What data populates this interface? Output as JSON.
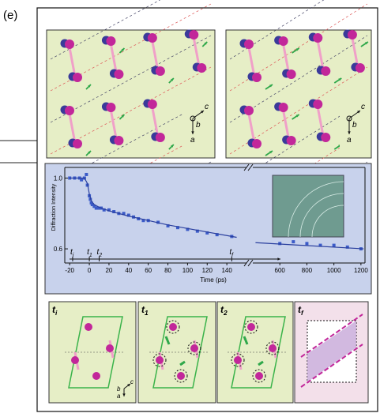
{
  "panel_label": "(e)",
  "top_panels": [
    {
      "axis_labels": [
        "c",
        "b",
        "a"
      ]
    },
    {
      "axis_labels": [
        "c",
        "b",
        "a"
      ]
    }
  ],
  "chart_data": {
    "type": "scatter",
    "y_label": "Diffraction Intensity",
    "x_label": "Time (ps)",
    "ylim": [
      0.52,
      1.06
    ],
    "yticks": [
      {
        "value": 1.0,
        "label": "1.0"
      },
      {
        "value": 0.6,
        "label": "0.6"
      }
    ],
    "xaxes": [
      {
        "xlim": [
          -25,
          160
        ],
        "xticks": [
          -20,
          0,
          20,
          40,
          60,
          80,
          100,
          120,
          140
        ]
      },
      {
        "xlim": [
          400,
          1230
        ],
        "xticks": [
          600,
          800,
          1000,
          1200
        ]
      }
    ],
    "series": [
      {
        "segment": 0,
        "style": "points",
        "color": "#3b5bc8",
        "x": [
          -20,
          -15,
          -10,
          -8,
          -5,
          -3,
          -2,
          0,
          1,
          2,
          3,
          5,
          7,
          10,
          12,
          15,
          20,
          25,
          30,
          35,
          40,
          45,
          50,
          55,
          60,
          70,
          80,
          90,
          100,
          110,
          120,
          130,
          145
        ],
        "values": [
          1.0,
          1.0,
          1.0,
          0.99,
          1.0,
          1.02,
          0.96,
          0.9,
          0.88,
          0.86,
          0.85,
          0.84,
          0.83,
          0.83,
          0.83,
          0.82,
          0.82,
          0.81,
          0.8,
          0.8,
          0.79,
          0.78,
          0.77,
          0.76,
          0.76,
          0.75,
          0.73,
          0.72,
          0.71,
          0.7,
          0.69,
          0.68,
          0.67
        ]
      },
      {
        "segment": 1,
        "style": "points",
        "color": "#3b5bc8",
        "x": [
          600,
          700,
          800,
          900,
          1000,
          1100,
          1200
        ],
        "values": [
          0.63,
          0.64,
          0.63,
          0.62,
          0.62,
          0.61,
          0.6
        ]
      },
      {
        "segment": 0,
        "style": "line",
        "color": "#2a3f9e",
        "x": [
          -20,
          -5,
          -2,
          0,
          2,
          5,
          10,
          20,
          40,
          60,
          80,
          100,
          120,
          140,
          150
        ],
        "values": [
          1.0,
          1.0,
          0.97,
          0.91,
          0.87,
          0.85,
          0.835,
          0.815,
          0.785,
          0.76,
          0.735,
          0.715,
          0.695,
          0.675,
          0.665
        ]
      },
      {
        "segment": 1,
        "style": "line",
        "color": "#2a3f9e",
        "x": [
          420,
          1220
        ],
        "values": [
          0.635,
          0.6
        ]
      }
    ],
    "markers": [
      {
        "value": -17,
        "label": "t",
        "sub": "i"
      },
      {
        "value": 0,
        "label": "t",
        "sub": "1"
      },
      {
        "value": 10,
        "label": "t",
        "sub": "2"
      },
      {
        "value": 145,
        "label": "t",
        "sub": "f"
      }
    ]
  },
  "bottom_panels": [
    {
      "label": "t",
      "sub": "i",
      "axis_labels": [
        "c",
        "b",
        "a"
      ]
    },
    {
      "label": "t",
      "sub": "1"
    },
    {
      "label": "t",
      "sub": "2"
    },
    {
      "label": "t",
      "sub": "f"
    }
  ]
}
